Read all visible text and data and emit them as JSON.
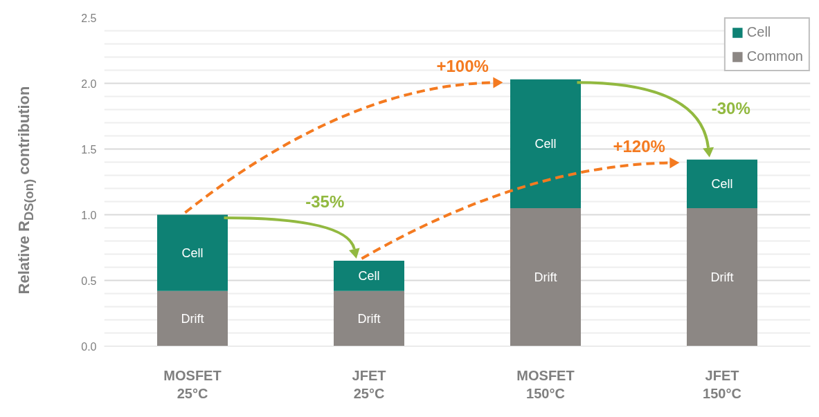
{
  "chart_data": {
    "type": "bar",
    "stacked": true,
    "ylabel": "Relative R$_{DS(on)}$ contribution",
    "categories": [
      "MOSFET\n25°C",
      "JFET\n25°C",
      "MOSFET\n150°C",
      "JFET\n150°C"
    ],
    "series": [
      {
        "name": "Common",
        "color": "#8c8784",
        "values": [
          0.42,
          0.42,
          1.05,
          1.05
        ],
        "value_labels": [
          "Drift",
          "Drift",
          "Drift",
          "Drift"
        ]
      },
      {
        "name": "Cell",
        "color": "#0e8174",
        "values": [
          0.58,
          0.23,
          0.98,
          0.37
        ],
        "value_labels": [
          "Cell",
          "Cell",
          "Cell",
          "Cell"
        ]
      }
    ],
    "ylim": [
      0,
      2.5
    ],
    "yticks": [
      {
        "value": 0,
        "label": "0.0"
      },
      {
        "value": 0.5,
        "label": "0.5"
      },
      {
        "value": 1,
        "label": "1.0"
      },
      {
        "value": 1.5,
        "label": "1.5"
      },
      {
        "value": 2,
        "label": "2.0"
      },
      {
        "value": 2.5,
        "label": "2.5"
      }
    ],
    "grid": "y",
    "legend": "top right",
    "annotations": [
      "+100%",
      "-35%",
      "+120%",
      "-30%"
    ]
  }
}
